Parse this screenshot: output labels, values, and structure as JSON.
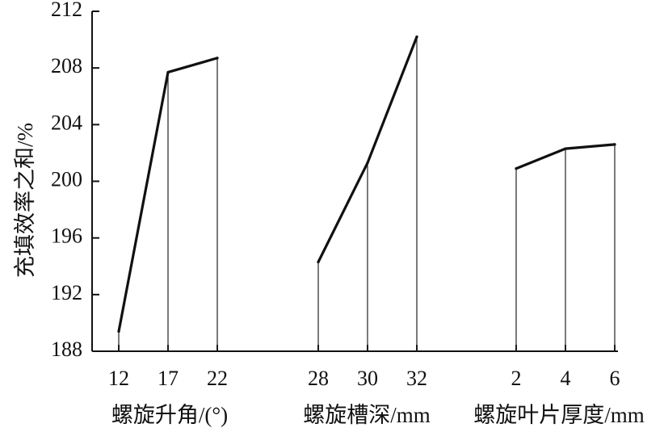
{
  "chart_data": {
    "type": "line",
    "ylabel": "充填效率之和/%",
    "ylim": [
      188,
      212
    ],
    "yticks": [
      188,
      192,
      196,
      200,
      204,
      208,
      212
    ],
    "grid": false,
    "groups": [
      {
        "label": "螺旋升角/(°)",
        "x": [
          "12",
          "17",
          "22"
        ],
        "values": [
          189.4,
          207.7,
          208.7
        ]
      },
      {
        "label": "螺旋槽深/mm",
        "x": [
          "28",
          "30",
          "32"
        ],
        "values": [
          194.3,
          201.3,
          210.2
        ]
      },
      {
        "label": "螺旋叶片厚度/mm",
        "x": [
          "2",
          "4",
          "6"
        ],
        "values": [
          200.9,
          202.3,
          202.6
        ]
      }
    ]
  }
}
